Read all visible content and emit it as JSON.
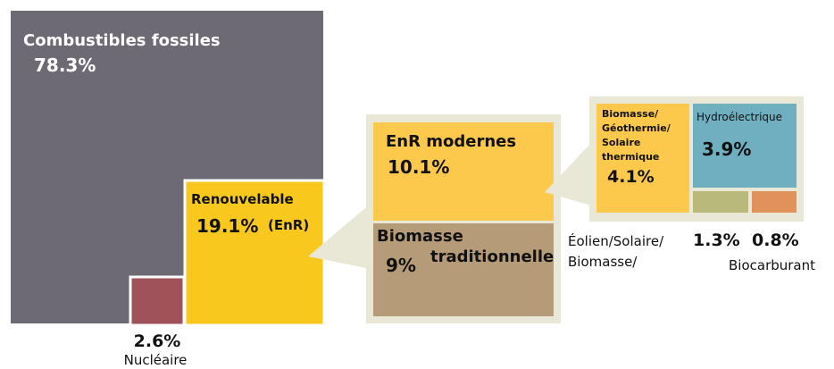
{
  "nodes": [
    {
      "label": "Combustibles fossiles",
      "value": "78.3%"
    },
    {
      "label": "Renouvelable",
      "value": "19.1%",
      "note": "(EnR)"
    },
    {
      "label": "Nucléaire",
      "value": "2.6%"
    },
    {
      "label": "EnR modernes",
      "value": "10.1%"
    },
    {
      "lines": [
        "Biomasse",
        "traditionnelle"
      ],
      "value": "9%"
    },
    {
      "lines": [
        "Biomasse/",
        "Géothermie/",
        "Solaire",
        "thermique"
      ],
      "value": "4.1%"
    },
    {
      "label": "Hydroélectrique",
      "value": "3.9%"
    },
    {
      "lines": [
        "Éolien/Solaire/",
        "Biomasse/"
      ],
      "value": "1.3%"
    },
    {
      "label": "Biocarburant",
      "value": "0.8%"
    }
  ]
}
